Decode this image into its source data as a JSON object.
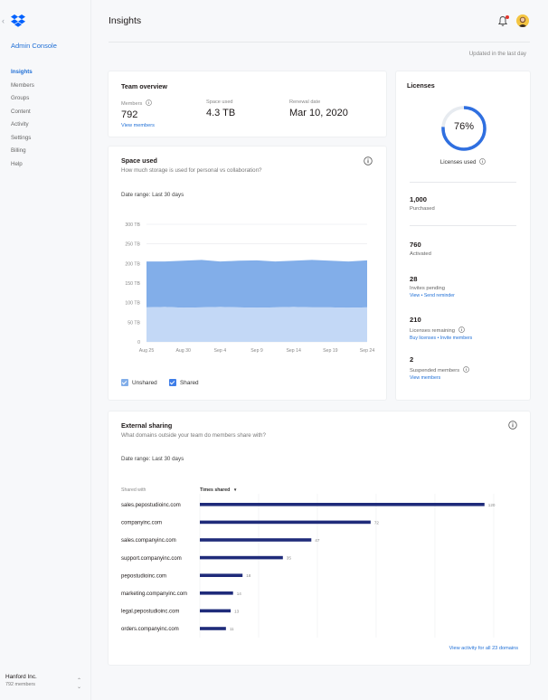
{
  "sidebar": {
    "title": "Admin Console",
    "items": [
      {
        "label": "Insights",
        "active": true
      },
      {
        "label": "Members",
        "active": false
      },
      {
        "label": "Groups",
        "active": false
      },
      {
        "label": "Content",
        "active": false
      },
      {
        "label": "Activity",
        "active": false
      },
      {
        "label": "Settings",
        "active": false
      },
      {
        "label": "Billing",
        "active": false
      },
      {
        "label": "Help",
        "active": false
      }
    ],
    "org_name": "Hanford Inc.",
    "org_members": "792 members"
  },
  "header": {
    "title": "Insights",
    "updated": "Updated in the last day"
  },
  "team_overview": {
    "title": "Team overview",
    "members_label": "Members",
    "members_value": "792",
    "view_members": "View members",
    "space_label": "Space used",
    "space_value": "4.3 TB",
    "renewal_label": "Renewal date",
    "renewal_value": "Mar 10, 2020"
  },
  "space_used": {
    "title": "Space used",
    "subtitle": "How much storage is used for personal vs collaboration?",
    "date_range_label": "Date range:",
    "date_range_value": "Last 30 days",
    "legend": [
      {
        "name": "Unshared",
        "color": "#c3d8f6"
      },
      {
        "name": "Shared",
        "color": "#82aee9"
      }
    ]
  },
  "licenses": {
    "title": "Licenses",
    "percent": 76,
    "percent_label": "76%",
    "used_label": "Licenses used",
    "rows": [
      {
        "number": "1,000",
        "label": "Purchased",
        "link": ""
      },
      {
        "number": "760",
        "label": "Activated",
        "link": ""
      },
      {
        "number": "28",
        "label": "Invites pending",
        "link": "View • Send reminder"
      },
      {
        "number": "210",
        "label": "Licenses remaining",
        "link": "Buy licenses • Invite members"
      },
      {
        "number": "2",
        "label": "Suspended members",
        "link": "View members"
      }
    ]
  },
  "external_sharing": {
    "title": "External sharing",
    "subtitle": "What domains outside your team do members share with?",
    "date_range_label": "Date range:",
    "date_range_value": "Last 30 days",
    "col_shared_with": "Shared with",
    "col_times_shared": "Times shared",
    "view_all": "View activity for all 23 domains"
  },
  "chart_data": [
    {
      "type": "area",
      "title": "",
      "x": [
        "Aug 20",
        "Aug 23",
        "Aug 26",
        "Aug 29",
        "Sep 1",
        "Sep 4",
        "Sep 7",
        "Sep 10",
        "Sep 13",
        "Sep 16",
        "Sep 19",
        "Sep 22",
        "Sep 24"
      ],
      "xticks": [
        "Aug 25",
        "Aug 30",
        "Sep 4",
        "Sep 9",
        "Sep 14",
        "Sep 19",
        "Sep 24"
      ],
      "yticks": [
        "0",
        "50 TB",
        "100 TB",
        "150 TB",
        "200 TB",
        "250 TB",
        "300 TB"
      ],
      "ylim": [
        0,
        300
      ],
      "stacked": true,
      "series": [
        {
          "name": "Unshared",
          "color": "#c3d8f6",
          "values": [
            88,
            89,
            87,
            88,
            89,
            88,
            87,
            88,
            89,
            88,
            88,
            87,
            88
          ]
        },
        {
          "name": "Shared",
          "color": "#82aee9",
          "values": [
            117,
            116,
            120,
            121,
            116,
            119,
            121,
            117,
            118,
            121,
            119,
            118,
            120
          ]
        }
      ],
      "grid": true
    },
    {
      "type": "bar",
      "orientation": "horizontal",
      "categories": [
        "sales.pepostudioinc.com",
        "companyinc.com",
        "sales.companyinc.com",
        "support.companyinc.com",
        "pepostudioinc.com",
        "marketing.companyinc.com",
        "legal.pepostudioinc.com",
        "orders.companyinc.com"
      ],
      "values": [
        120,
        72,
        47,
        35,
        18,
        14,
        13,
        11
      ],
      "xlim": [
        0,
        130
      ],
      "color": "#1f2b7a",
      "grid": true
    }
  ]
}
